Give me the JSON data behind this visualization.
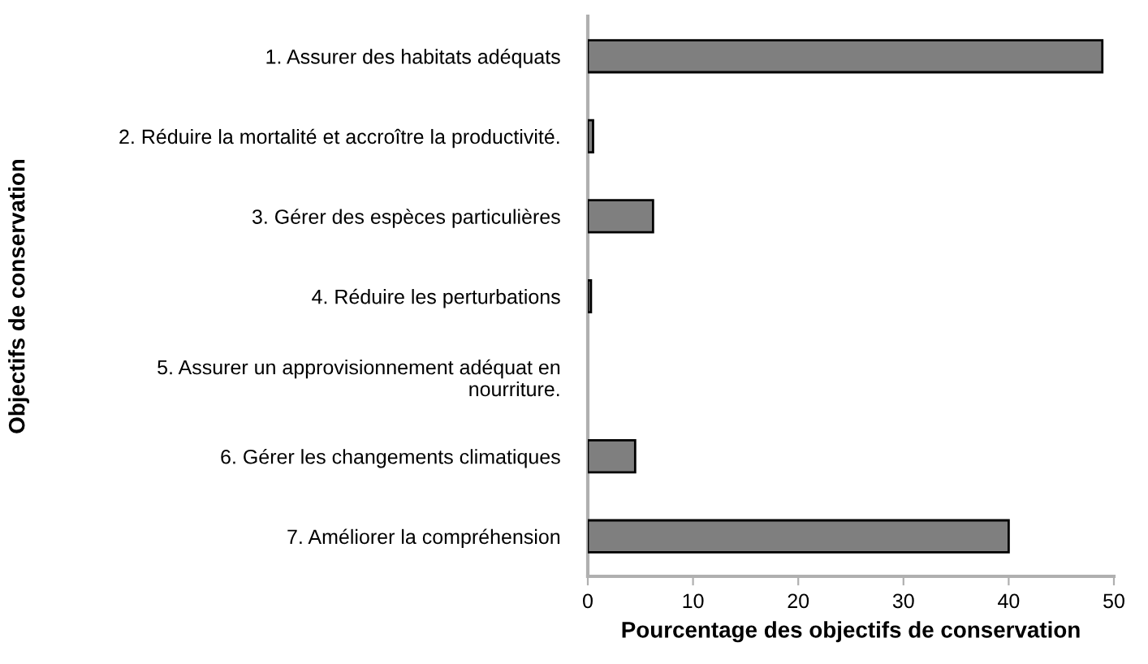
{
  "chart_data": {
    "type": "bar",
    "orientation": "horizontal",
    "categories": [
      "1. Assurer des habitats adéquats",
      "2. Réduire la mortalité et accroître la productivité.",
      "3. Gérer des espèces particulières",
      "4. Réduire les perturbations",
      "5. Assurer un approvisionnement adéquat en\nnourriture.",
      "6. Gérer les changements climatiques",
      "7. Améliorer la compréhension"
    ],
    "values": [
      48.9,
      0.5,
      6.2,
      0.3,
      0,
      4.5,
      40
    ],
    "color": "#7f7f7f",
    "xlabel": "Pourcentage des objectifs de conservation",
    "ylabel": "Objectifs de conservation",
    "xlim": [
      0,
      50
    ],
    "xticks": [
      0,
      10,
      20,
      30,
      40,
      50
    ],
    "grid": false,
    "legend": false
  }
}
